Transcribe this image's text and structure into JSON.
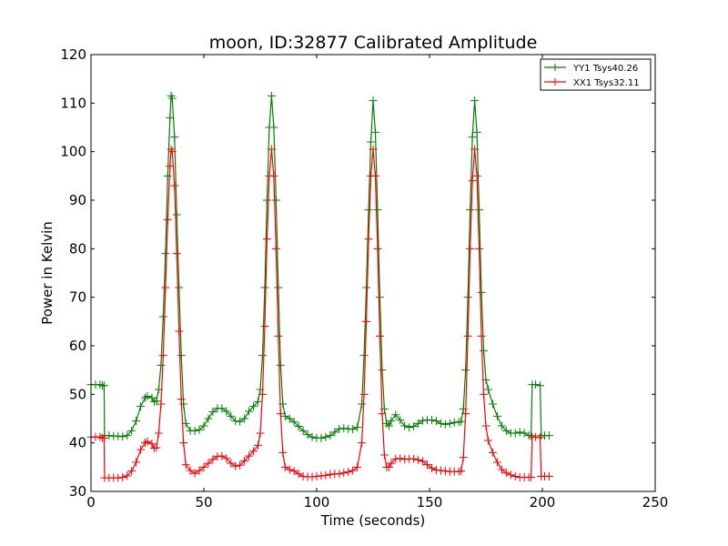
{
  "chart_data": {
    "type": "line",
    "title": "moon, ID:32877 Calibrated Amplitude",
    "xlabel": "Time (seconds)",
    "ylabel": "Power in Kelvin",
    "xlim": [
      0,
      250
    ],
    "ylim": [
      30,
      120
    ],
    "xticks": [
      0,
      50,
      100,
      150,
      200,
      250
    ],
    "yticks": [
      30,
      40,
      50,
      60,
      70,
      80,
      90,
      100,
      110,
      120
    ],
    "grid": false,
    "legend": {
      "placement": "top-right",
      "entries": [
        "YY1 Tsys40.26",
        "XX1 Tsys32.11"
      ]
    },
    "series": [
      {
        "name": "YY1 Tsys40.26",
        "color": "#008000",
        "marker": "+",
        "points": [
          [
            0,
            52
          ],
          [
            2,
            52
          ],
          [
            4,
            52
          ],
          [
            5,
            51.8
          ],
          [
            5.8,
            51.8
          ],
          [
            6,
            41.5
          ],
          [
            8,
            41.5
          ],
          [
            10,
            41.4
          ],
          [
            12,
            41.4
          ],
          [
            14,
            41.3
          ],
          [
            16,
            41.5
          ],
          [
            18,
            42.5
          ],
          [
            20,
            44.5
          ],
          [
            22,
            47.5
          ],
          [
            24,
            49.3
          ],
          [
            25,
            49.6
          ],
          [
            27,
            49.3
          ],
          [
            28,
            48.5
          ],
          [
            29,
            48.6
          ],
          [
            30,
            51
          ],
          [
            31,
            56
          ],
          [
            32,
            66
          ],
          [
            33,
            79
          ],
          [
            34,
            95
          ],
          [
            35,
            107
          ],
          [
            35.5,
            111.5
          ],
          [
            36,
            111
          ],
          [
            37,
            103
          ],
          [
            38,
            87
          ],
          [
            39,
            72
          ],
          [
            40,
            58
          ],
          [
            41,
            48
          ],
          [
            42,
            44
          ],
          [
            44,
            42.5
          ],
          [
            46,
            42.5
          ],
          [
            48,
            42.7
          ],
          [
            50,
            43.5
          ],
          [
            52,
            45
          ],
          [
            54,
            46.4
          ],
          [
            56,
            47.1
          ],
          [
            58,
            47.1
          ],
          [
            60,
            46.5
          ],
          [
            62,
            45.5
          ],
          [
            64,
            44.5
          ],
          [
            66,
            44.4
          ],
          [
            68,
            45
          ],
          [
            70,
            46.5
          ],
          [
            72,
            47.5
          ],
          [
            74,
            48.5
          ],
          [
            75,
            51
          ],
          [
            76,
            58
          ],
          [
            77,
            72
          ],
          [
            78,
            90
          ],
          [
            79,
            105
          ],
          [
            80,
            111.5
          ],
          [
            81,
            105
          ],
          [
            82,
            90
          ],
          [
            83,
            72
          ],
          [
            84,
            56
          ],
          [
            85,
            48
          ],
          [
            86,
            45.5
          ],
          [
            88,
            45
          ],
          [
            90,
            44.3
          ],
          [
            92,
            43.4
          ],
          [
            94,
            42.5
          ],
          [
            96,
            41.7
          ],
          [
            98,
            41.2
          ],
          [
            100,
            41
          ],
          [
            102,
            41
          ],
          [
            104,
            41.2
          ],
          [
            106,
            41.5
          ],
          [
            108,
            42.2
          ],
          [
            110,
            42.9
          ],
          [
            112,
            43
          ],
          [
            114,
            42.9
          ],
          [
            116,
            42.8
          ],
          [
            118,
            43.2
          ],
          [
            120,
            48
          ],
          [
            121,
            58
          ],
          [
            122,
            72
          ],
          [
            123,
            88
          ],
          [
            124,
            102
          ],
          [
            125,
            110.5
          ],
          [
            126,
            104
          ],
          [
            127,
            88
          ],
          [
            128,
            70
          ],
          [
            129,
            55
          ],
          [
            130,
            47
          ],
          [
            131,
            44
          ],
          [
            132,
            43.5
          ],
          [
            133,
            44.5
          ],
          [
            135,
            45.8
          ],
          [
            137,
            44.7
          ],
          [
            139,
            43.5
          ],
          [
            141,
            43.2
          ],
          [
            143,
            43.4
          ],
          [
            145,
            44
          ],
          [
            147,
            44.6
          ],
          [
            149,
            44.7
          ],
          [
            151,
            44.7
          ],
          [
            153,
            44.5
          ],
          [
            155,
            44
          ],
          [
            157,
            43.8
          ],
          [
            159,
            44
          ],
          [
            161,
            44.2
          ],
          [
            163,
            44.3
          ],
          [
            164,
            44.4
          ],
          [
            165,
            47
          ],
          [
            166,
            55
          ],
          [
            167,
            70
          ],
          [
            168,
            88
          ],
          [
            169,
            103
          ],
          [
            170,
            110.5
          ],
          [
            171,
            104
          ],
          [
            172,
            88
          ],
          [
            173,
            71
          ],
          [
            174,
            59
          ],
          [
            175,
            53
          ],
          [
            176,
            51
          ],
          [
            178,
            48
          ],
          [
            180,
            45.5
          ],
          [
            182,
            43.5
          ],
          [
            184,
            42.5
          ],
          [
            186,
            42
          ],
          [
            188,
            42
          ],
          [
            190,
            42.2
          ],
          [
            192,
            42
          ],
          [
            194,
            41.5
          ],
          [
            195,
            41.5
          ],
          [
            195.5,
            52
          ],
          [
            197,
            52
          ],
          [
            199,
            51.8
          ],
          [
            199.5,
            41.5
          ],
          [
            201,
            41.5
          ],
          [
            203,
            41.5
          ]
        ]
      },
      {
        "name": "XX1 Tsys32.11",
        "color": "#ff0000",
        "marker": "+",
        "points": [
          [
            0,
            41.2
          ],
          [
            2,
            41.2
          ],
          [
            4,
            41.2
          ],
          [
            5,
            41
          ],
          [
            5.8,
            41
          ],
          [
            6,
            32.8
          ],
          [
            8,
            32.8
          ],
          [
            10,
            32.8
          ],
          [
            12,
            32.8
          ],
          [
            14,
            32.9
          ],
          [
            16,
            33.2
          ],
          [
            18,
            34.2
          ],
          [
            20,
            36
          ],
          [
            22,
            38.6
          ],
          [
            24,
            40
          ],
          [
            25,
            40.3
          ],
          [
            27,
            39.8
          ],
          [
            28,
            38.9
          ],
          [
            29,
            39
          ],
          [
            30,
            42
          ],
          [
            31,
            48
          ],
          [
            32,
            58
          ],
          [
            33,
            72
          ],
          [
            34,
            86
          ],
          [
            35,
            97
          ],
          [
            35.5,
            100.5
          ],
          [
            36,
            100
          ],
          [
            37,
            93
          ],
          [
            38,
            79
          ],
          [
            39,
            63
          ],
          [
            40,
            49
          ],
          [
            41,
            40
          ],
          [
            42,
            35.5
          ],
          [
            44,
            34.3
          ],
          [
            46,
            33.7
          ],
          [
            48,
            34.3
          ],
          [
            50,
            35
          ],
          [
            52,
            35.8
          ],
          [
            54,
            36.6
          ],
          [
            56,
            37.2
          ],
          [
            58,
            37.3
          ],
          [
            60,
            36.8
          ],
          [
            62,
            35.8
          ],
          [
            64,
            35.2
          ],
          [
            66,
            35.4
          ],
          [
            68,
            36.3
          ],
          [
            70,
            37.3
          ],
          [
            72,
            38.3
          ],
          [
            74,
            39.5
          ],
          [
            75,
            42
          ],
          [
            76,
            50
          ],
          [
            77,
            64
          ],
          [
            78,
            82
          ],
          [
            79,
            95
          ],
          [
            80,
            100.5
          ],
          [
            81,
            95
          ],
          [
            82,
            80
          ],
          [
            83,
            62
          ],
          [
            84,
            46
          ],
          [
            85,
            38
          ],
          [
            86,
            35
          ],
          [
            88,
            34.5
          ],
          [
            90,
            34.2
          ],
          [
            92,
            33.6
          ],
          [
            94,
            33.1
          ],
          [
            96,
            33
          ],
          [
            98,
            33
          ],
          [
            100,
            33.1
          ],
          [
            102,
            33.2
          ],
          [
            104,
            33.3
          ],
          [
            106,
            33.5
          ],
          [
            108,
            33.6
          ],
          [
            110,
            33.6
          ],
          [
            112,
            33.8
          ],
          [
            114,
            34
          ],
          [
            116,
            34.3
          ],
          [
            118,
            35
          ],
          [
            120,
            40
          ],
          [
            121,
            50
          ],
          [
            122,
            65
          ],
          [
            123,
            82
          ],
          [
            124,
            95
          ],
          [
            125,
            100.5
          ],
          [
            126,
            95
          ],
          [
            127,
            80
          ],
          [
            128,
            62
          ],
          [
            129,
            46
          ],
          [
            130,
            37.5
          ],
          [
            131,
            35
          ],
          [
            132,
            35
          ],
          [
            133,
            35.8
          ],
          [
            135,
            36.7
          ],
          [
            137,
            36.8
          ],
          [
            139,
            36.6
          ],
          [
            141,
            36.7
          ],
          [
            143,
            36.7
          ],
          [
            145,
            36.5
          ],
          [
            147,
            36.2
          ],
          [
            149,
            35.5
          ],
          [
            151,
            34.8
          ],
          [
            153,
            34.4
          ],
          [
            155,
            34.3
          ],
          [
            157,
            34.2
          ],
          [
            159,
            34.1
          ],
          [
            161,
            34.1
          ],
          [
            163,
            34.1
          ],
          [
            164,
            34.2
          ],
          [
            165,
            37
          ],
          [
            166,
            46
          ],
          [
            167,
            62
          ],
          [
            168,
            80
          ],
          [
            169,
            94
          ],
          [
            170,
            100.5
          ],
          [
            171,
            95
          ],
          [
            172,
            80
          ],
          [
            173,
            62
          ],
          [
            174,
            50
          ],
          [
            175,
            43.5
          ],
          [
            176,
            40.5
          ],
          [
            178,
            38
          ],
          [
            180,
            36
          ],
          [
            182,
            34.5
          ],
          [
            184,
            33.8
          ],
          [
            186,
            33.4
          ],
          [
            188,
            33.1
          ],
          [
            190,
            32.9
          ],
          [
            192,
            32.9
          ],
          [
            194,
            32.9
          ],
          [
            195,
            32.9
          ],
          [
            195.5,
            41.2
          ],
          [
            197,
            41.2
          ],
          [
            199,
            41.1
          ],
          [
            199.5,
            33.1
          ],
          [
            201,
            33.1
          ],
          [
            203,
            33.1
          ]
        ]
      }
    ]
  }
}
